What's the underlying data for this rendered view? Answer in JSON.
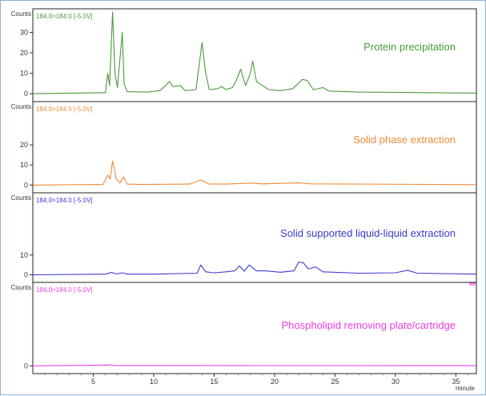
{
  "chart_data": {
    "type": "line",
    "x_label": "minute",
    "y_label": "Counts",
    "x_range": [
      0,
      36.7
    ],
    "x_ticks": [
      5,
      10,
      15,
      20,
      25,
      30,
      35
    ],
    "y_ticks": [
      0,
      10,
      20,
      30
    ],
    "panels": [
      {
        "name": "Protein precipitation",
        "mrm": "184.0>184.0 [-5.0V]",
        "color": "#4a9a3c",
        "ylim": [
          -2,
          40
        ],
        "show_y_ticks": [
          0,
          10,
          20,
          30
        ],
        "points": [
          [
            0,
            0
          ],
          [
            6.0,
            0.5
          ],
          [
            6.2,
            10
          ],
          [
            6.35,
            4
          ],
          [
            6.6,
            40
          ],
          [
            6.8,
            10
          ],
          [
            7.0,
            3
          ],
          [
            7.4,
            30
          ],
          [
            7.55,
            5
          ],
          [
            7.8,
            1
          ],
          [
            9.5,
            0.8
          ],
          [
            10.5,
            1.5
          ],
          [
            11.0,
            4
          ],
          [
            11.3,
            6
          ],
          [
            11.6,
            3.5
          ],
          [
            12.2,
            4
          ],
          [
            12.6,
            1.5
          ],
          [
            13.5,
            2
          ],
          [
            14.0,
            25
          ],
          [
            14.3,
            10
          ],
          [
            14.6,
            2
          ],
          [
            15.3,
            2.5
          ],
          [
            15.6,
            3.5
          ],
          [
            16.0,
            2
          ],
          [
            16.5,
            3
          ],
          [
            16.8,
            6
          ],
          [
            17.2,
            12
          ],
          [
            17.6,
            4
          ],
          [
            18.0,
            10
          ],
          [
            18.2,
            16
          ],
          [
            18.5,
            6
          ],
          [
            19.0,
            4
          ],
          [
            19.5,
            2
          ],
          [
            20.5,
            1.5
          ],
          [
            21.5,
            2.5
          ],
          [
            22.3,
            7
          ],
          [
            22.7,
            6.5
          ],
          [
            23.2,
            2
          ],
          [
            24.0,
            3
          ],
          [
            24.5,
            1.3
          ],
          [
            27.0,
            0.8
          ],
          [
            31.0,
            0.6
          ],
          [
            36.7,
            0.3
          ]
        ]
      },
      {
        "name": "Solid phase extraction",
        "mrm": "184.0>184.0 [-5.0V]",
        "color": "#ee8a3a",
        "ylim": [
          -2,
          40
        ],
        "show_y_ticks": [
          0,
          10,
          20
        ],
        "points": [
          [
            0,
            0
          ],
          [
            5.8,
            0.3
          ],
          [
            6.2,
            5
          ],
          [
            6.4,
            3
          ],
          [
            6.6,
            12
          ],
          [
            6.9,
            3
          ],
          [
            7.2,
            1
          ],
          [
            7.5,
            4
          ],
          [
            7.8,
            0.5
          ],
          [
            9.0,
            0.3
          ],
          [
            13.0,
            0.5
          ],
          [
            13.9,
            2.5
          ],
          [
            14.6,
            0.5
          ],
          [
            16.0,
            0.5
          ],
          [
            18.0,
            1.0
          ],
          [
            19.0,
            0.6
          ],
          [
            22.0,
            1.1
          ],
          [
            23.0,
            0.6
          ],
          [
            36.7,
            0.2
          ]
        ]
      },
      {
        "name": "Solid supported liquid-liquid extraction",
        "mrm": "184.0>184.0 [-5.0V]",
        "color": "#3b3bd0",
        "ylim": [
          -2,
          40
        ],
        "show_y_ticks": [
          0,
          10
        ],
        "points": [
          [
            0,
            0
          ],
          [
            6.0,
            0.3
          ],
          [
            6.5,
            1.2
          ],
          [
            6.9,
            0.4
          ],
          [
            7.4,
            1.0
          ],
          [
            7.8,
            0.3
          ],
          [
            10.0,
            0.3
          ],
          [
            13.6,
            0.8
          ],
          [
            13.9,
            5
          ],
          [
            14.3,
            1.5
          ],
          [
            15.0,
            1
          ],
          [
            16.0,
            1.5
          ],
          [
            16.7,
            2
          ],
          [
            17.1,
            4.5
          ],
          [
            17.5,
            1.8
          ],
          [
            17.9,
            5
          ],
          [
            18.5,
            2
          ],
          [
            19.2,
            2
          ],
          [
            20.5,
            1.3
          ],
          [
            21.6,
            2
          ],
          [
            22.0,
            6.5
          ],
          [
            22.4,
            6
          ],
          [
            22.8,
            3
          ],
          [
            23.4,
            4
          ],
          [
            24.0,
            1.5
          ],
          [
            27.0,
            0.8
          ],
          [
            30.0,
            1
          ],
          [
            31.0,
            2.3
          ],
          [
            31.8,
            0.8
          ],
          [
            36.7,
            0.3
          ]
        ]
      },
      {
        "name": "Phospholipid removing plate/cartridge",
        "mrm": "184.0>184.0 [-5.0V]",
        "color": "#ee3ee8",
        "ylim": [
          -2,
          55
        ],
        "show_y_ticks": [
          0
        ],
        "points": [
          [
            0,
            0
          ],
          [
            6.2,
            0.5
          ],
          [
            6.4,
            0.8
          ],
          [
            6.7,
            0.2
          ],
          [
            36.7,
            0.1
          ]
        ]
      }
    ]
  }
}
